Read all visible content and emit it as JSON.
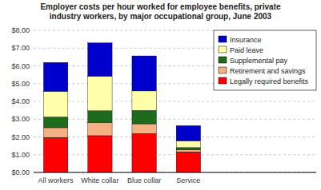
{
  "chart_data": {
    "type": "bar",
    "stacked": true,
    "title": "Employer costs per hour worked for employee benefits, private\nindustry workers, by major occupational group, June 2003",
    "categories": [
      "All workers",
      "White collar",
      "Blue collar",
      "Service"
    ],
    "series": [
      {
        "name": "Legally required benefits",
        "color": "#ff0000",
        "values": [
          1.97,
          2.07,
          2.19,
          1.16
        ]
      },
      {
        "name": "Retirement and savings",
        "color": "#f4b183",
        "values": [
          0.55,
          0.75,
          0.55,
          0.12
        ]
      },
      {
        "name": "Supplemental pay",
        "color": "#1e6b1e",
        "values": [
          0.6,
          0.65,
          0.75,
          0.12
        ]
      },
      {
        "name": "Paid leave",
        "color": "#ffffaa",
        "values": [
          1.45,
          1.95,
          1.1,
          0.38
        ]
      },
      {
        "name": "Insurance",
        "color": "#0000cc",
        "values": [
          1.62,
          1.87,
          1.97,
          0.85
        ]
      }
    ],
    "ylim": [
      0,
      8.0
    ],
    "yticks": [
      {
        "value": 0.0,
        "label": "$0.00"
      },
      {
        "value": 1.0,
        "label": "$1.00"
      },
      {
        "value": 2.0,
        "label": "$2.00"
      },
      {
        "value": 3.0,
        "label": "$3.00"
      },
      {
        "value": 4.0,
        "label": "$4.00"
      },
      {
        "value": 5.0,
        "label": "$5.00"
      },
      {
        "value": 6.0,
        "label": "$6.00"
      },
      {
        "value": 7.0,
        "label": "$7.00"
      },
      {
        "value": 8.0,
        "label": "$8.00"
      }
    ],
    "grid": true,
    "legend": "upper right"
  }
}
